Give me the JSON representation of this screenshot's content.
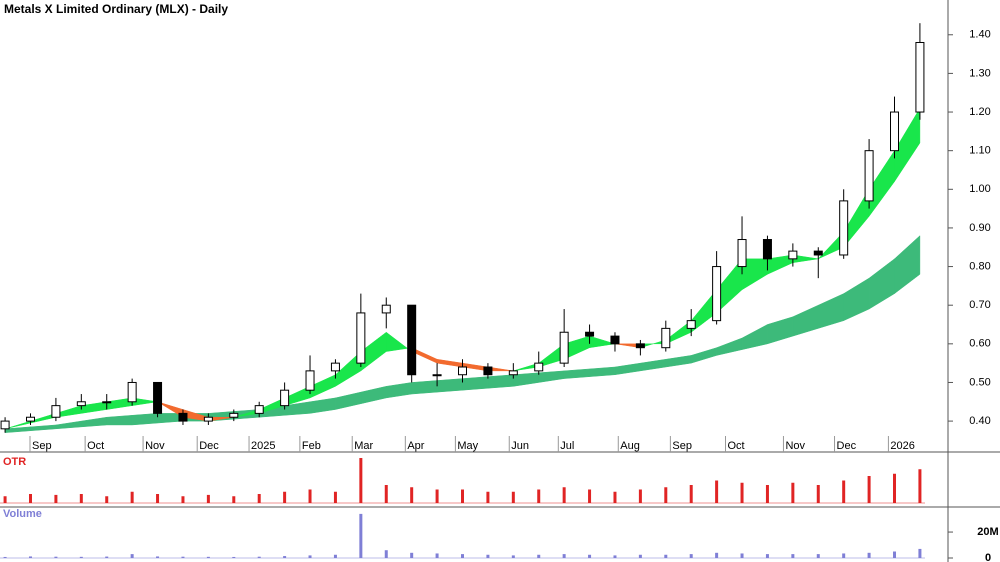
{
  "chart_data": [
    {
      "type": "candlestick",
      "title": "Metals X Limited Ordinary (MLX) - Daily",
      "categories": [
        null,
        null,
        null,
        null,
        null,
        null,
        null,
        null,
        null,
        null,
        null,
        null,
        null,
        null,
        null,
        null,
        null,
        null,
        null,
        null,
        null,
        null,
        null,
        null,
        null,
        null,
        null,
        null,
        null,
        null,
        null,
        null,
        null,
        null,
        null,
        null,
        null
      ],
      "open": [
        0.38,
        0.4,
        0.41,
        0.44,
        0.45,
        0.45,
        0.5,
        0.42,
        0.4,
        0.41,
        0.42,
        0.44,
        0.48,
        0.53,
        0.55,
        0.68,
        0.7,
        0.52,
        0.52,
        0.54,
        0.52,
        0.53,
        0.55,
        0.63,
        0.62,
        0.6,
        0.59,
        0.64,
        0.66,
        0.8,
        0.87,
        0.82,
        0.84,
        0.83,
        0.97,
        1.1,
        1.2
      ],
      "high": [
        0.41,
        0.42,
        0.46,
        0.47,
        0.47,
        0.51,
        0.5,
        0.43,
        0.42,
        0.43,
        0.45,
        0.5,
        0.57,
        0.56,
        0.73,
        0.72,
        0.7,
        0.55,
        0.56,
        0.55,
        0.55,
        0.58,
        0.69,
        0.65,
        0.63,
        0.61,
        0.66,
        0.69,
        0.84,
        0.93,
        0.88,
        0.86,
        0.85,
        1.0,
        1.13,
        1.24,
        1.43
      ],
      "low": [
        0.37,
        0.39,
        0.4,
        0.43,
        0.43,
        0.44,
        0.41,
        0.39,
        0.39,
        0.4,
        0.41,
        0.43,
        0.47,
        0.51,
        0.54,
        0.64,
        0.5,
        0.49,
        0.5,
        0.51,
        0.51,
        0.52,
        0.54,
        0.6,
        0.58,
        0.57,
        0.58,
        0.62,
        0.65,
        0.78,
        0.79,
        0.8,
        0.77,
        0.82,
        0.95,
        1.08,
        1.18
      ],
      "close": [
        0.4,
        0.41,
        0.44,
        0.45,
        0.45,
        0.5,
        0.42,
        0.4,
        0.41,
        0.42,
        0.44,
        0.48,
        0.53,
        0.55,
        0.68,
        0.7,
        0.52,
        0.52,
        0.54,
        0.52,
        0.53,
        0.55,
        0.63,
        0.62,
        0.6,
        0.59,
        0.64,
        0.66,
        0.8,
        0.87,
        0.82,
        0.84,
        0.83,
        0.97,
        1.1,
        1.2,
        1.38
      ],
      "fast_band": {
        "rising_color": "#19e64b",
        "falling_color": "#f26a2e",
        "short": [
          0.38,
          0.4,
          0.42,
          0.44,
          0.45,
          0.46,
          0.45,
          0.41,
          0.4,
          0.41,
          0.43,
          0.46,
          0.49,
          0.52,
          0.58,
          0.63,
          0.58,
          0.55,
          0.54,
          0.53,
          0.53,
          0.55,
          0.6,
          0.62,
          0.6,
          0.59,
          0.61,
          0.66,
          0.74,
          0.82,
          0.82,
          0.83,
          0.82,
          0.89,
          1.0,
          1.1,
          1.21
        ],
        "long": [
          0.38,
          0.395,
          0.41,
          0.42,
          0.43,
          0.44,
          0.45,
          0.43,
          0.41,
          0.41,
          0.42,
          0.44,
          0.46,
          0.49,
          0.53,
          0.58,
          0.59,
          0.56,
          0.55,
          0.54,
          0.53,
          0.54,
          0.56,
          0.59,
          0.6,
          0.6,
          0.6,
          0.63,
          0.68,
          0.74,
          0.78,
          0.81,
          0.82,
          0.85,
          0.93,
          1.02,
          1.12
        ]
      },
      "slow_band": {
        "color": "#3dba7a",
        "lower": [
          0.37,
          0.375,
          0.38,
          0.385,
          0.39,
          0.39,
          0.395,
          0.4,
          0.4,
          0.405,
          0.41,
          0.415,
          0.42,
          0.43,
          0.445,
          0.46,
          0.47,
          0.475,
          0.48,
          0.485,
          0.49,
          0.5,
          0.51,
          0.515,
          0.52,
          0.53,
          0.54,
          0.55,
          0.57,
          0.585,
          0.6,
          0.62,
          0.64,
          0.66,
          0.69,
          0.73,
          0.78
        ],
        "upper": [
          0.38,
          0.385,
          0.39,
          0.4,
          0.41,
          0.415,
          0.42,
          0.42,
          0.42,
          0.425,
          0.43,
          0.44,
          0.45,
          0.46,
          0.475,
          0.49,
          0.5,
          0.505,
          0.51,
          0.515,
          0.52,
          0.525,
          0.53,
          0.535,
          0.54,
          0.55,
          0.56,
          0.57,
          0.59,
          0.615,
          0.65,
          0.67,
          0.7,
          0.73,
          0.77,
          0.82,
          0.88
        ]
      },
      "xlim": [
        -0.2,
        36.2
      ],
      "xticks": [
        {
          "value": 0.98,
          "label": "Sep"
        },
        {
          "value": 3.15,
          "label": "Oct"
        },
        {
          "value": 5.43,
          "label": "Nov"
        },
        {
          "value": 7.56,
          "label": "Dec"
        },
        {
          "value": 9.6,
          "label": "2025"
        },
        {
          "value": 11.6,
          "label": "Feb"
        },
        {
          "value": 13.66,
          "label": "Mar"
        },
        {
          "value": 15.75,
          "label": "Apr"
        },
        {
          "value": 17.72,
          "label": "May"
        },
        {
          "value": 19.84,
          "label": "Jun"
        },
        {
          "value": 21.77,
          "label": "Jul"
        },
        {
          "value": 24.13,
          "label": "Aug"
        },
        {
          "value": 26.18,
          "label": "Sep"
        },
        {
          "value": 28.35,
          "label": "Oct"
        },
        {
          "value": 30.63,
          "label": "Nov"
        },
        {
          "value": 32.64,
          "label": "Dec"
        },
        {
          "value": 34.76,
          "label": "2026"
        }
      ],
      "ylim": [
        0.32,
        1.49
      ],
      "yticks": [
        {
          "value": 0.4,
          "label": "0.40"
        },
        {
          "value": 0.5,
          "label": "0.50"
        },
        {
          "value": 0.6,
          "label": "0.60"
        },
        {
          "value": 0.7,
          "label": "0.70"
        },
        {
          "value": 0.8,
          "label": "0.80"
        },
        {
          "value": 0.9,
          "label": "0.90"
        },
        {
          "value": 1.0,
          "label": "1.00"
        },
        {
          "value": 1.1,
          "label": "1.10"
        },
        {
          "value": 1.2,
          "label": "1.20"
        },
        {
          "value": 1.3,
          "label": "1.30"
        },
        {
          "value": 1.4,
          "label": "1.40"
        }
      ]
    },
    {
      "type": "bar",
      "title": "OTR",
      "color": "#e02424",
      "ylim": [
        0,
        1
      ],
      "values": [
        0.15,
        0.2,
        0.18,
        0.2,
        0.15,
        0.25,
        0.2,
        0.15,
        0.18,
        0.15,
        0.2,
        0.25,
        0.3,
        0.25,
        1.0,
        0.4,
        0.35,
        0.3,
        0.3,
        0.25,
        0.25,
        0.3,
        0.35,
        0.3,
        0.25,
        0.3,
        0.35,
        0.4,
        0.5,
        0.45,
        0.4,
        0.45,
        0.4,
        0.5,
        0.6,
        0.65,
        0.75
      ]
    },
    {
      "type": "bar",
      "title": "Volume",
      "color": "#7f7fd6",
      "ylim": [
        0,
        37000000
      ],
      "yticks": [
        0,
        {
          "value": 20000000,
          "label": "20M"
        }
      ],
      "values": [
        800000,
        1200000,
        1000000,
        900000,
        1100000,
        3000000,
        1200000,
        1000000,
        900000,
        800000,
        1000000,
        1500000,
        2000000,
        2500000,
        34000000,
        6000000,
        4000000,
        3500000,
        3000000,
        2500000,
        2000000,
        2500000,
        3000000,
        2500000,
        2000000,
        2500000,
        2500000,
        3000000,
        4000000,
        3500000,
        3000000,
        3000000,
        3000000,
        3500000,
        4000000,
        5000000,
        7000000
      ]
    }
  ]
}
